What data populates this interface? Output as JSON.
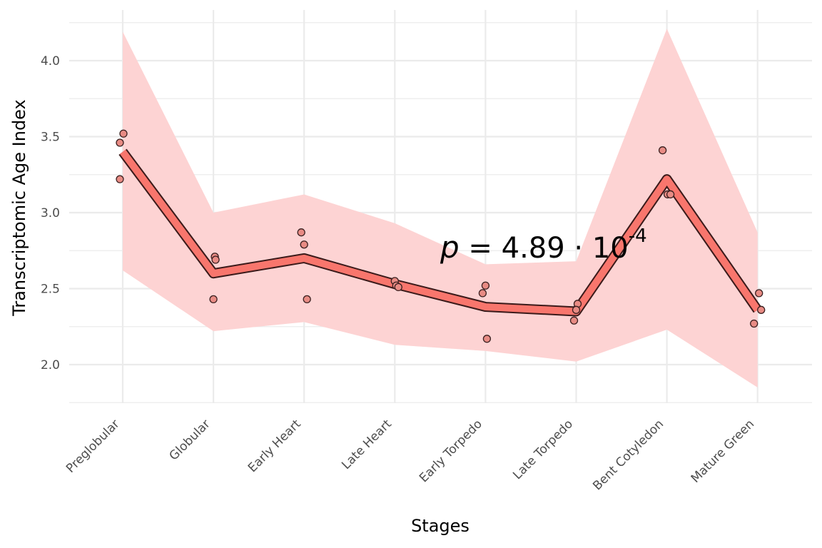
{
  "chart_data": {
    "type": "line",
    "xlabel": "Stages",
    "ylabel": "Transcriptomic Age Index",
    "categories": [
      "Preglobular",
      "Globular",
      "Early Heart",
      "Late Heart",
      "Early Torpedo",
      "Late Torpedo",
      "Bent Cotyledon",
      "Mature Green"
    ],
    "ylim": [
      1.75,
      4.27
    ],
    "yticks": [
      2.0,
      2.5,
      3.0,
      3.5,
      4.0
    ],
    "ytick_labels": [
      "2.0",
      "2.5",
      "3.0",
      "3.5",
      "4.0"
    ],
    "grid": true,
    "mean": [
      3.4,
      2.6,
      2.7,
      2.53,
      2.38,
      2.35,
      3.22,
      2.36
    ],
    "ribbon_lower": [
      2.62,
      2.22,
      2.28,
      2.13,
      2.09,
      2.02,
      2.23,
      1.85
    ],
    "ribbon_upper": [
      4.19,
      3.0,
      3.12,
      2.93,
      2.66,
      2.68,
      4.21,
      2.87
    ],
    "points": [
      {
        "stage": 0,
        "y": 3.46
      },
      {
        "stage": 0,
        "y": 3.52
      },
      {
        "stage": 0,
        "y": 3.22
      },
      {
        "stage": 1,
        "y": 2.71
      },
      {
        "stage": 1,
        "y": 2.69
      },
      {
        "stage": 1,
        "y": 2.43
      },
      {
        "stage": 2,
        "y": 2.87
      },
      {
        "stage": 2,
        "y": 2.79
      },
      {
        "stage": 2,
        "y": 2.43
      },
      {
        "stage": 3,
        "y": 2.55
      },
      {
        "stage": 3,
        "y": 2.52
      },
      {
        "stage": 3,
        "y": 2.51
      },
      {
        "stage": 4,
        "y": 2.52
      },
      {
        "stage": 4,
        "y": 2.47
      },
      {
        "stage": 4,
        "y": 2.17
      },
      {
        "stage": 5,
        "y": 2.4
      },
      {
        "stage": 5,
        "y": 2.36
      },
      {
        "stage": 5,
        "y": 2.29
      },
      {
        "stage": 6,
        "y": 3.41
      },
      {
        "stage": 6,
        "y": 3.12
      },
      {
        "stage": 6,
        "y": 3.12
      },
      {
        "stage": 7,
        "y": 2.47
      },
      {
        "stage": 7,
        "y": 2.36
      },
      {
        "stage": 7,
        "y": 2.27
      }
    ],
    "annotation": {
      "var": "p",
      "eq": " = ",
      "mantissa": "4.89",
      "dot": " · 10",
      "exponent": "-4"
    },
    "colors": {
      "ribbon": "#fdd3d3",
      "line_fill": "#f8766d",
      "line_outline": "#3a1a1a",
      "point_fill": "#e88b84",
      "point_stroke": "#3a2020",
      "grid": "#ebebeb"
    }
  }
}
